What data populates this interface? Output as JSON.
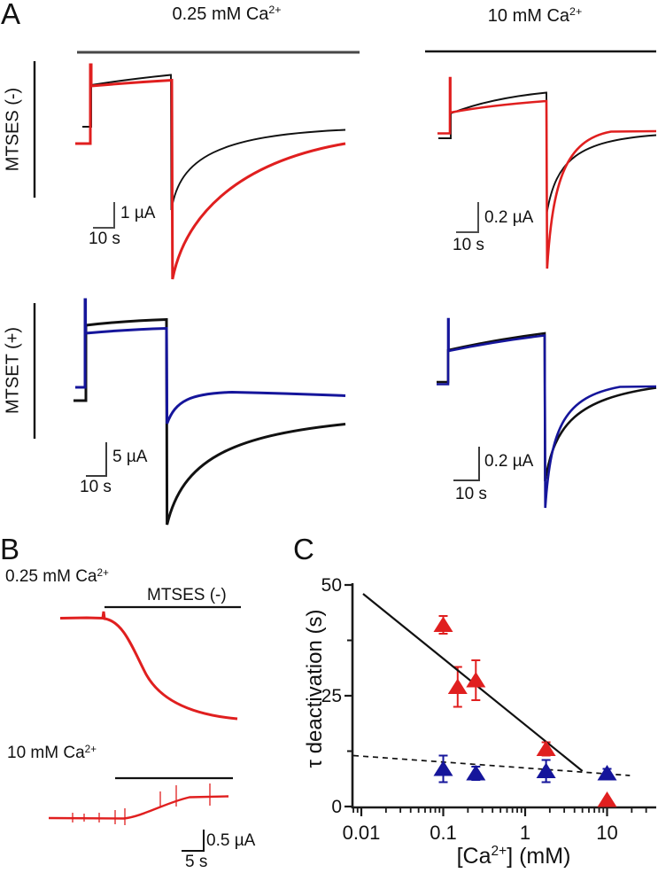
{
  "figure_labels": {
    "panel_a": "A",
    "panel_b": "B",
    "panel_c": "C"
  },
  "panel_a": {
    "col_headers": [
      {
        "text": "0.25 mM  Ca",
        "sup": "2+"
      },
      {
        "text": "10 mM  Ca",
        "sup": "2+"
      }
    ],
    "row_labels": [
      "MTSES (-)",
      "MTSET (+)"
    ],
    "trace_colors": {
      "control": "#111111",
      "mtses": "#e01f1f",
      "mtset": "#15159b"
    },
    "scale_bars": {
      "top_left": {
        "current": "1 µA",
        "time": "10 s"
      },
      "top_right": {
        "current": "0.2 µA",
        "time": "10 s"
      },
      "bottom_left": {
        "current": "5 µA",
        "time": "10 s"
      },
      "bottom_right": {
        "current": "0.2 µA",
        "time": "10 s"
      }
    }
  },
  "panel_b": {
    "trace1_header": {
      "text": "0.25 mM  Ca",
      "sup": "2+"
    },
    "trace1_bar_label": "MTSES (-)",
    "trace2_header": {
      "text": "10 mM  Ca",
      "sup": "2+"
    },
    "scale_bar": {
      "current": "0.5 µA",
      "time": "5 s"
    }
  },
  "chart_data": {
    "type": "scatter",
    "x_scale": "log",
    "title": "",
    "ylabel": "τ deactivation (s)",
    "xlabel_parts": {
      "pre": "[Ca",
      "sup": "2+",
      "post": "] (mM)"
    },
    "xlim": [
      0.008,
      39
    ],
    "ylim": [
      0,
      50.5
    ],
    "grid": false,
    "legend": "none",
    "xticks": [
      {
        "v": 0.01,
        "label": "0.01"
      },
      {
        "v": 0.1,
        "label": "0.1"
      },
      {
        "v": 1,
        "label": "1"
      },
      {
        "v": 10,
        "label": "10"
      }
    ],
    "yticks": [
      {
        "v": 0,
        "label": "0"
      },
      {
        "v": 25,
        "label": "25"
      },
      {
        "v": 50,
        "label": "50"
      }
    ],
    "y_minor": [
      12.5,
      37.5
    ],
    "series": [
      {
        "name": "mtses-red",
        "color": "#e01f1f",
        "marker": "triangle",
        "points": [
          {
            "x": 0.1,
            "y": 41,
            "err": 2
          },
          {
            "x": 0.15,
            "y": 27,
            "err": 4.5
          },
          {
            "x": 0.25,
            "y": 28.5,
            "err": 4.5
          },
          {
            "x": 1.8,
            "y": 13,
            "err": 1.5
          },
          {
            "x": 10,
            "y": 1.5,
            "err": 0
          }
        ]
      },
      {
        "name": "mtset-blue",
        "color": "#15159b",
        "marker": "triangle",
        "points": [
          {
            "x": 0.1,
            "y": 8.5,
            "err": 3
          },
          {
            "x": 0.25,
            "y": 7.5,
            "err": 1.5
          },
          {
            "x": 1.8,
            "y": 8,
            "err": 2.5
          },
          {
            "x": 10,
            "y": 7.5,
            "err": 1
          }
        ]
      }
    ],
    "fit_lines": [
      {
        "style": "solid",
        "x1": 0.0105,
        "y1": 48,
        "x2": 5,
        "y2": 8
      },
      {
        "style": "dashed",
        "x1": 0.008,
        "y1": 11.5,
        "x2": 19,
        "y2": 7
      }
    ]
  }
}
